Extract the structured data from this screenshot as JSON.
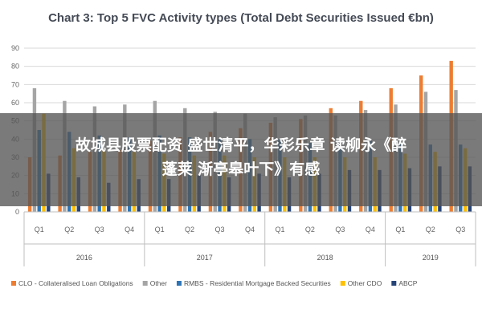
{
  "chart_data": {
    "type": "bar",
    "title": "Chart 3: Top 5 FVC Activity types (Total Debt Securities Issued €bn)",
    "xlabel": "",
    "ylabel": "",
    "ylim": [
      0,
      90
    ],
    "yticks": [
      "0",
      "10",
      "20",
      "30",
      "40",
      "50",
      "60",
      "70",
      "80",
      "90"
    ],
    "grid": true,
    "legend_position": "bottom",
    "groups": [
      {
        "label": "2016",
        "quarters": [
          "Q1",
          "Q2",
          "Q3",
          "Q4"
        ]
      },
      {
        "label": "2017",
        "quarters": [
          "Q1",
          "Q2",
          "Q3",
          "Q4"
        ]
      },
      {
        "label": "2018",
        "quarters": [
          "Q1",
          "Q2",
          "Q3",
          "Q4"
        ]
      },
      {
        "label": "2019",
        "quarters": [
          "Q1",
          "Q2",
          "Q3"
        ]
      }
    ],
    "categories": [
      "Q1",
      "Q2",
      "Q3",
      "Q4",
      "Q1",
      "Q2",
      "Q3",
      "Q4",
      "Q1",
      "Q2",
      "Q3",
      "Q4",
      "Q1",
      "Q2",
      "Q3"
    ],
    "series": [
      {
        "name": "CLO - Collateralised Loan Obligations",
        "color": "#ED7D31",
        "values": [
          30,
          31,
          33,
          34,
          39,
          41,
          44,
          46,
          49,
          51,
          57,
          61,
          68,
          75,
          83
        ]
      },
      {
        "name": "Other",
        "color": "#A5A5A5",
        "values": [
          68,
          61,
          58,
          59,
          61,
          57,
          55,
          54,
          52,
          53,
          53,
          56,
          59,
          66,
          67
        ]
      },
      {
        "name": "RMBS - Residential Mortgage Backed Securities",
        "color": "#2E75B6",
        "values": [
          45,
          44,
          42,
          41,
          42,
          41,
          40,
          40,
          40,
          38,
          38,
          39,
          38,
          37,
          37
        ]
      },
      {
        "name": "Other CDO",
        "color": "#FFC000",
        "values": [
          54,
          35,
          34,
          33,
          32,
          31,
          31,
          30,
          30,
          30,
          30,
          30,
          32,
          33,
          35
        ]
      },
      {
        "name": "ABCP",
        "color": "#264478",
        "values": [
          21,
          19,
          16,
          18,
          18,
          20,
          19,
          21,
          19,
          21,
          23,
          23,
          24,
          25,
          25
        ]
      }
    ]
  },
  "overlay": {
    "line1": "故城县股票配资 盛世清平，华彩乐章 读柳永《醉",
    "line2": "蓬莱 渐亭皋叶下》有感"
  }
}
